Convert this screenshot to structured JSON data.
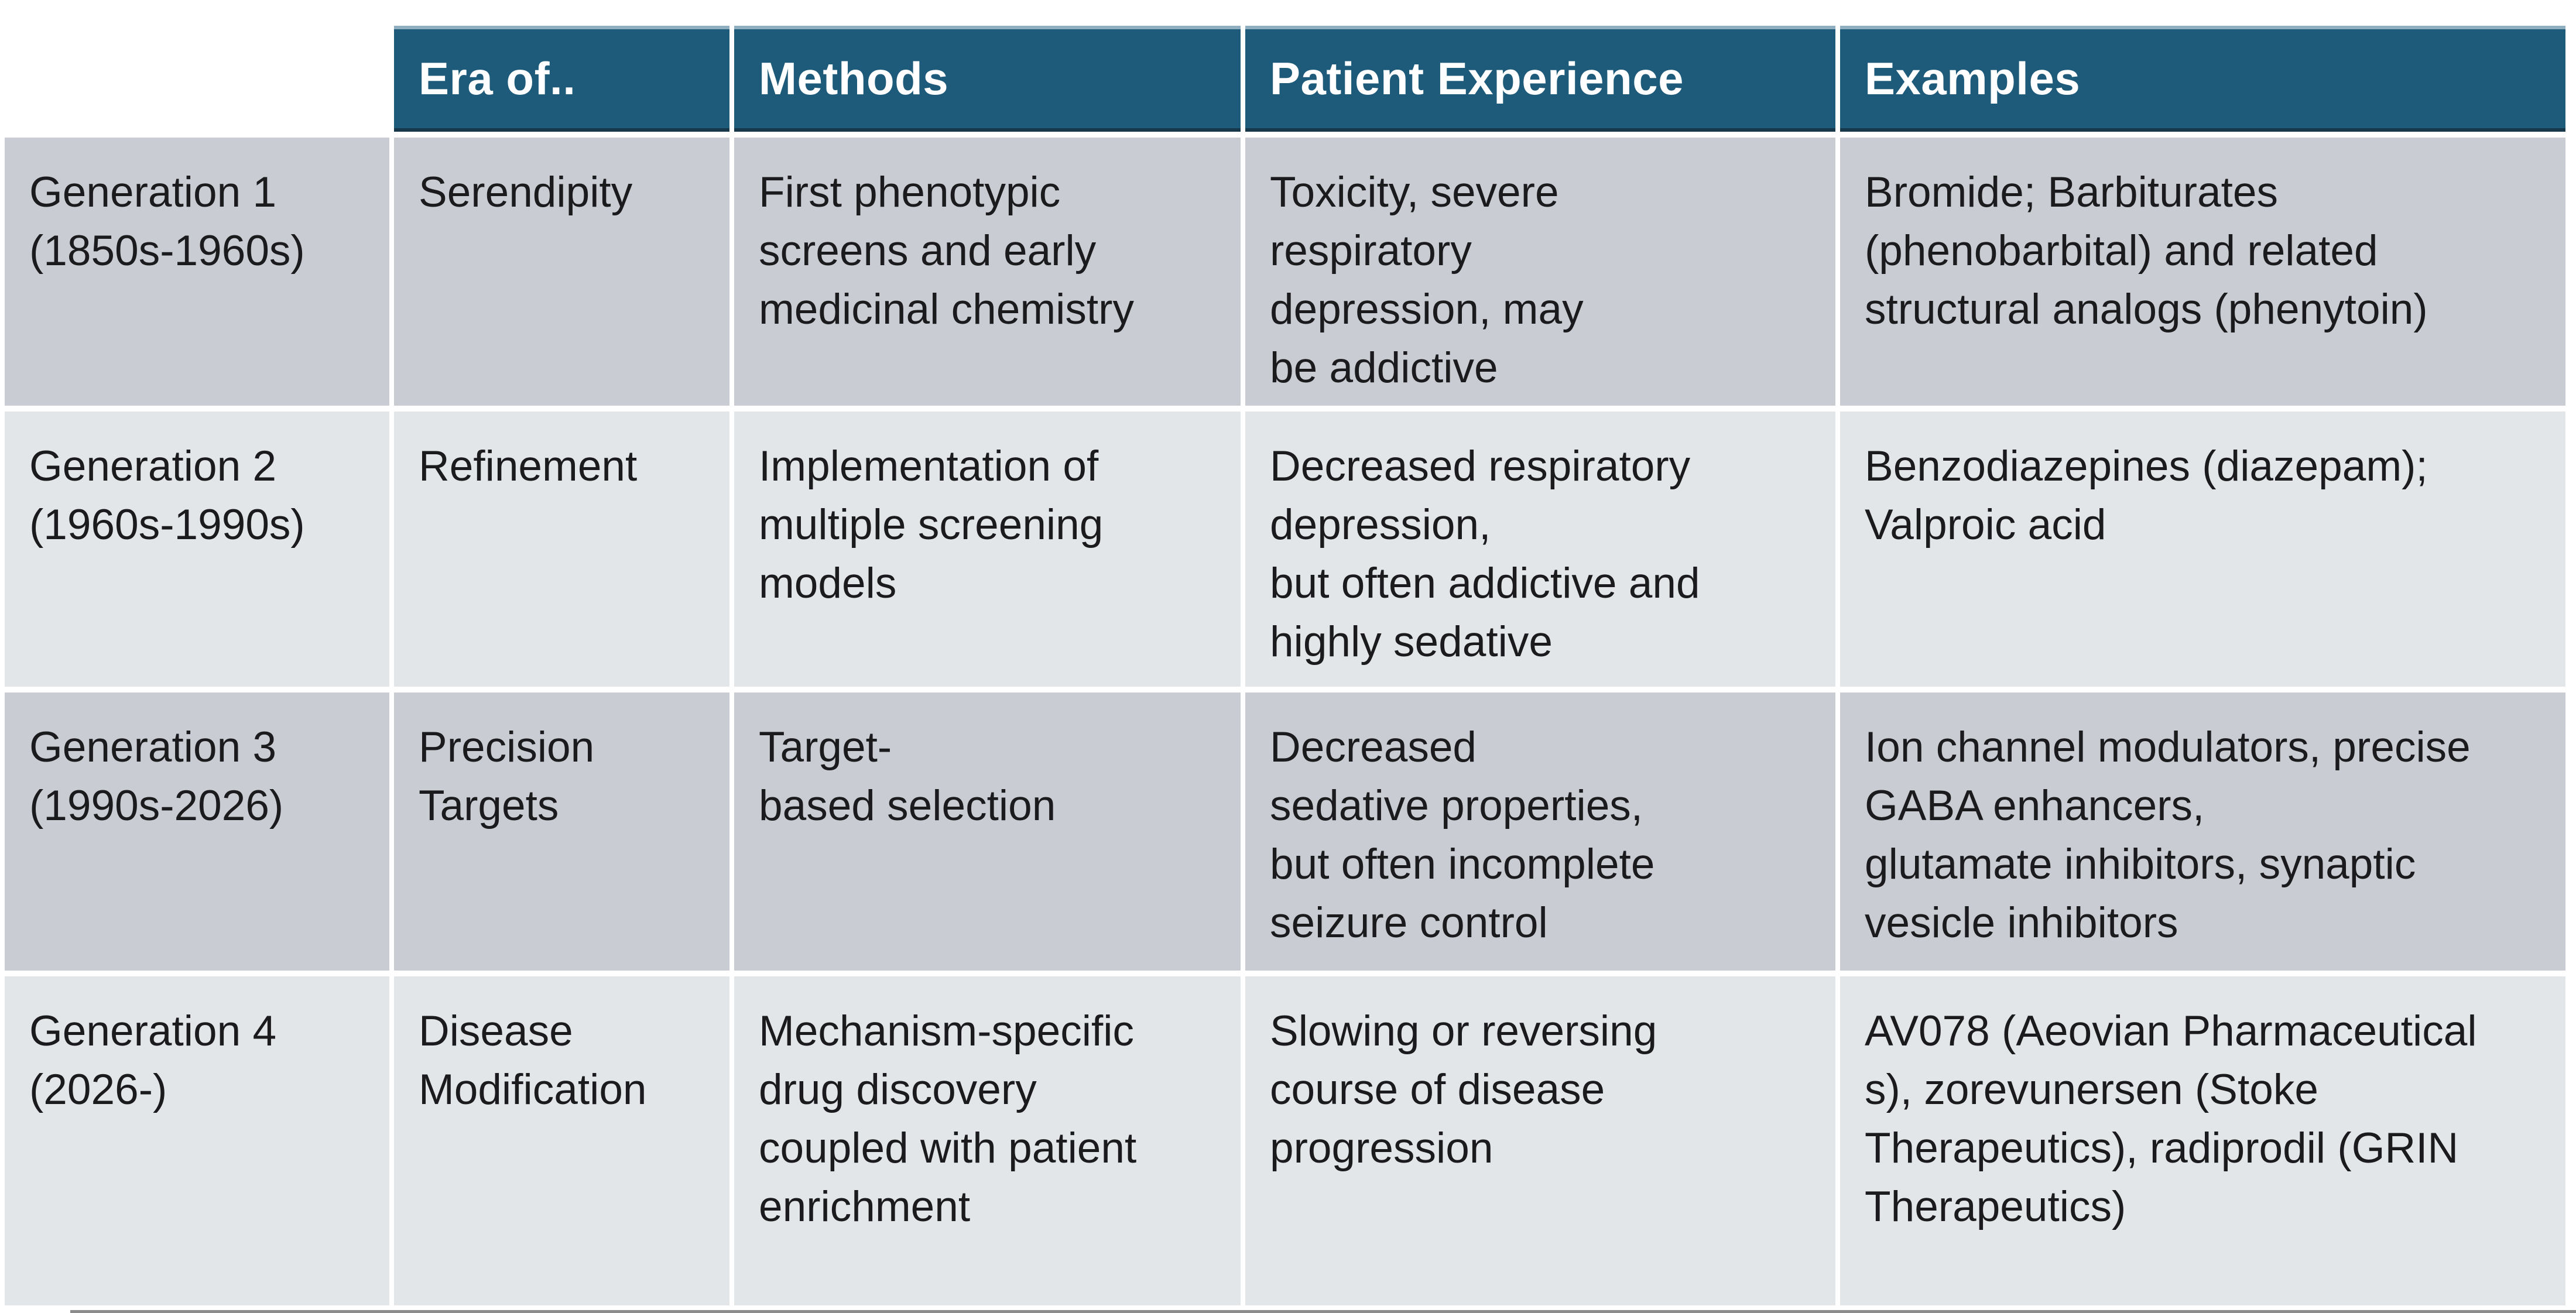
{
  "table": {
    "columns": [
      {
        "key": "generation",
        "label": ""
      },
      {
        "key": "era",
        "label": "Era of.."
      },
      {
        "key": "methods",
        "label": "Methods"
      },
      {
        "key": "patient_experience",
        "label": "Patient Experience"
      },
      {
        "key": "examples",
        "label": "Examples"
      }
    ],
    "rows": [
      {
        "generation": "Generation 1\n(1850s-1960s)",
        "era": "Serendipity",
        "methods": "First phenotypic\nscreens and early\nmedicinal chemistry",
        "patient_experience": "Toxicity, severe\nrespiratory\ndepression, may\nbe addictive",
        "examples": "Bromide; Barbiturates\n(phenobarbital) and related\nstructural analogs (phenytoin)"
      },
      {
        "generation": "Generation 2\n(1960s-1990s)",
        "era": "Refinement",
        "methods": "Implementation of\nmultiple screening\nmodels",
        "patient_experience": "Decreased respiratory\ndepression,\nbut often addictive and\nhighly sedative",
        "examples": "Benzodiazepines (diazepam);\nValproic acid"
      },
      {
        "generation": "Generation 3\n(1990s-2026)",
        "era": "Precision\nTargets",
        "methods": "Target-\nbased selection",
        "patient_experience": "Decreased\nsedative properties,\nbut often incomplete\nseizure control",
        "examples": "Ion channel modulators, precise\nGABA enhancers,\nglutamate inhibitors, synaptic\nvesicle inhibitors"
      },
      {
        "generation": "Generation 4\n(2026-)",
        "era": "Disease\nModification",
        "methods": "Mechanism-specific\ndrug discovery\ncoupled with patient\nenrichment",
        "patient_experience": "Slowing or reversing\ncourse of disease\nprogression",
        "examples": "AV078 (Aeovian Pharmaceutical\ns), zorevunersen (Stoke\nTherapeutics), radiprodil (GRIN\nTherapeutics)"
      }
    ]
  },
  "colors": {
    "header_bg": "#1e5b7a",
    "header_top_edge": "#8fafc0",
    "header_bottom_edge": "#16384a",
    "header_text": "#ffffff",
    "row_odd_bg": "#c9cdd3",
    "row_even_bg": "#e3e6e9",
    "body_text": "#1b1b1d",
    "separator": "#ffffff",
    "page_bg": "#ffffff",
    "bottom_edge_line": "#2e2e2e"
  }
}
